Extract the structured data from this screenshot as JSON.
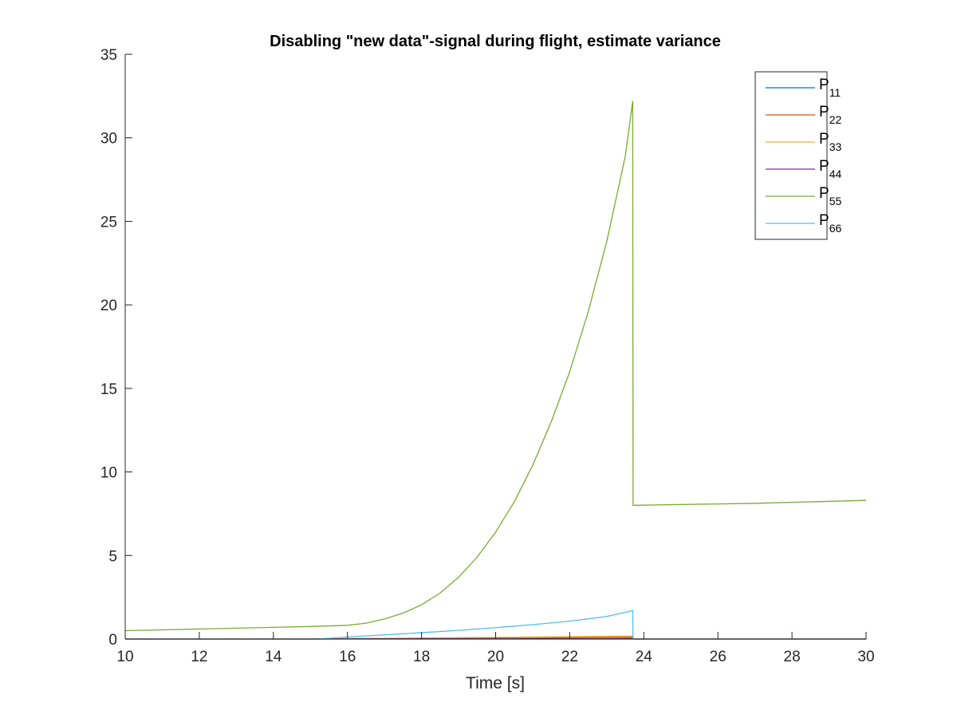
{
  "chart_data": {
    "type": "line",
    "title": "Disabling \"new data\"-signal during flight, estimate variance",
    "xlabel": "Time [s]",
    "ylabel": "",
    "xlim": [
      10,
      30
    ],
    "ylim": [
      0,
      35
    ],
    "x_ticks": [
      10,
      12,
      14,
      16,
      18,
      20,
      22,
      24,
      26,
      28,
      30
    ],
    "y_ticks": [
      0,
      5,
      10,
      15,
      20,
      25,
      30,
      35
    ],
    "grid": false,
    "legend_position": "top-right",
    "series": [
      {
        "name": "P",
        "subscript": "11",
        "color": "#0072BD",
        "points": [
          [
            10,
            0.0
          ],
          [
            30,
            0.0
          ]
        ]
      },
      {
        "name": "P",
        "subscript": "22",
        "color": "#D95319",
        "points": [
          [
            10,
            0.0
          ],
          [
            15,
            0.0
          ],
          [
            16,
            0.02
          ],
          [
            18,
            0.05
          ],
          [
            20,
            0.08
          ],
          [
            22,
            0.11
          ],
          [
            23.7,
            0.14
          ],
          [
            23.71,
            0.0
          ],
          [
            30,
            0.0
          ]
        ]
      },
      {
        "name": "P",
        "subscript": "33",
        "color": "#EDB120",
        "points": [
          [
            10,
            0.0
          ],
          [
            15,
            0.0
          ],
          [
            16,
            0.02
          ],
          [
            18,
            0.06
          ],
          [
            20,
            0.1
          ],
          [
            22,
            0.14
          ],
          [
            23.7,
            0.18
          ],
          [
            23.71,
            0.0
          ],
          [
            30,
            0.0
          ]
        ]
      },
      {
        "name": "P",
        "subscript": "44",
        "color": "#7E2F8E",
        "points": [
          [
            10,
            0.0
          ],
          [
            15,
            0.0
          ],
          [
            16,
            0.01
          ],
          [
            18,
            0.02
          ],
          [
            20,
            0.03
          ],
          [
            22,
            0.04
          ],
          [
            23.7,
            0.05
          ],
          [
            23.71,
            0.0
          ],
          [
            30,
            0.0
          ]
        ]
      },
      {
        "name": "P",
        "subscript": "55",
        "color": "#77AC30",
        "points": [
          [
            10,
            0.5
          ],
          [
            11,
            0.55
          ],
          [
            12,
            0.6
          ],
          [
            13,
            0.65
          ],
          [
            14,
            0.7
          ],
          [
            15,
            0.75
          ],
          [
            16,
            0.82
          ],
          [
            16.5,
            0.95
          ],
          [
            17,
            1.2
          ],
          [
            17.5,
            1.55
          ],
          [
            18,
            2.05
          ],
          [
            18.5,
            2.75
          ],
          [
            19,
            3.7
          ],
          [
            19.5,
            4.9
          ],
          [
            20,
            6.4
          ],
          [
            20.5,
            8.2
          ],
          [
            21,
            10.4
          ],
          [
            21.5,
            13.0
          ],
          [
            22,
            16.0
          ],
          [
            22.5,
            19.6
          ],
          [
            23,
            23.8
          ],
          [
            23.5,
            28.9
          ],
          [
            23.7,
            32.2
          ],
          [
            23.71,
            8.0
          ],
          [
            25,
            8.05
          ],
          [
            27,
            8.12
          ],
          [
            30,
            8.3
          ]
        ]
      },
      {
        "name": "P",
        "subscript": "66",
        "color": "#4DBEEE",
        "points": [
          [
            10,
            0.0
          ],
          [
            15.2,
            0.0
          ],
          [
            16,
            0.12
          ],
          [
            17,
            0.25
          ],
          [
            18,
            0.38
          ],
          [
            19,
            0.52
          ],
          [
            20,
            0.68
          ],
          [
            21,
            0.86
          ],
          [
            22,
            1.07
          ],
          [
            23,
            1.35
          ],
          [
            23.7,
            1.7
          ],
          [
            23.71,
            0.0
          ],
          [
            30,
            0.0
          ]
        ]
      }
    ]
  }
}
